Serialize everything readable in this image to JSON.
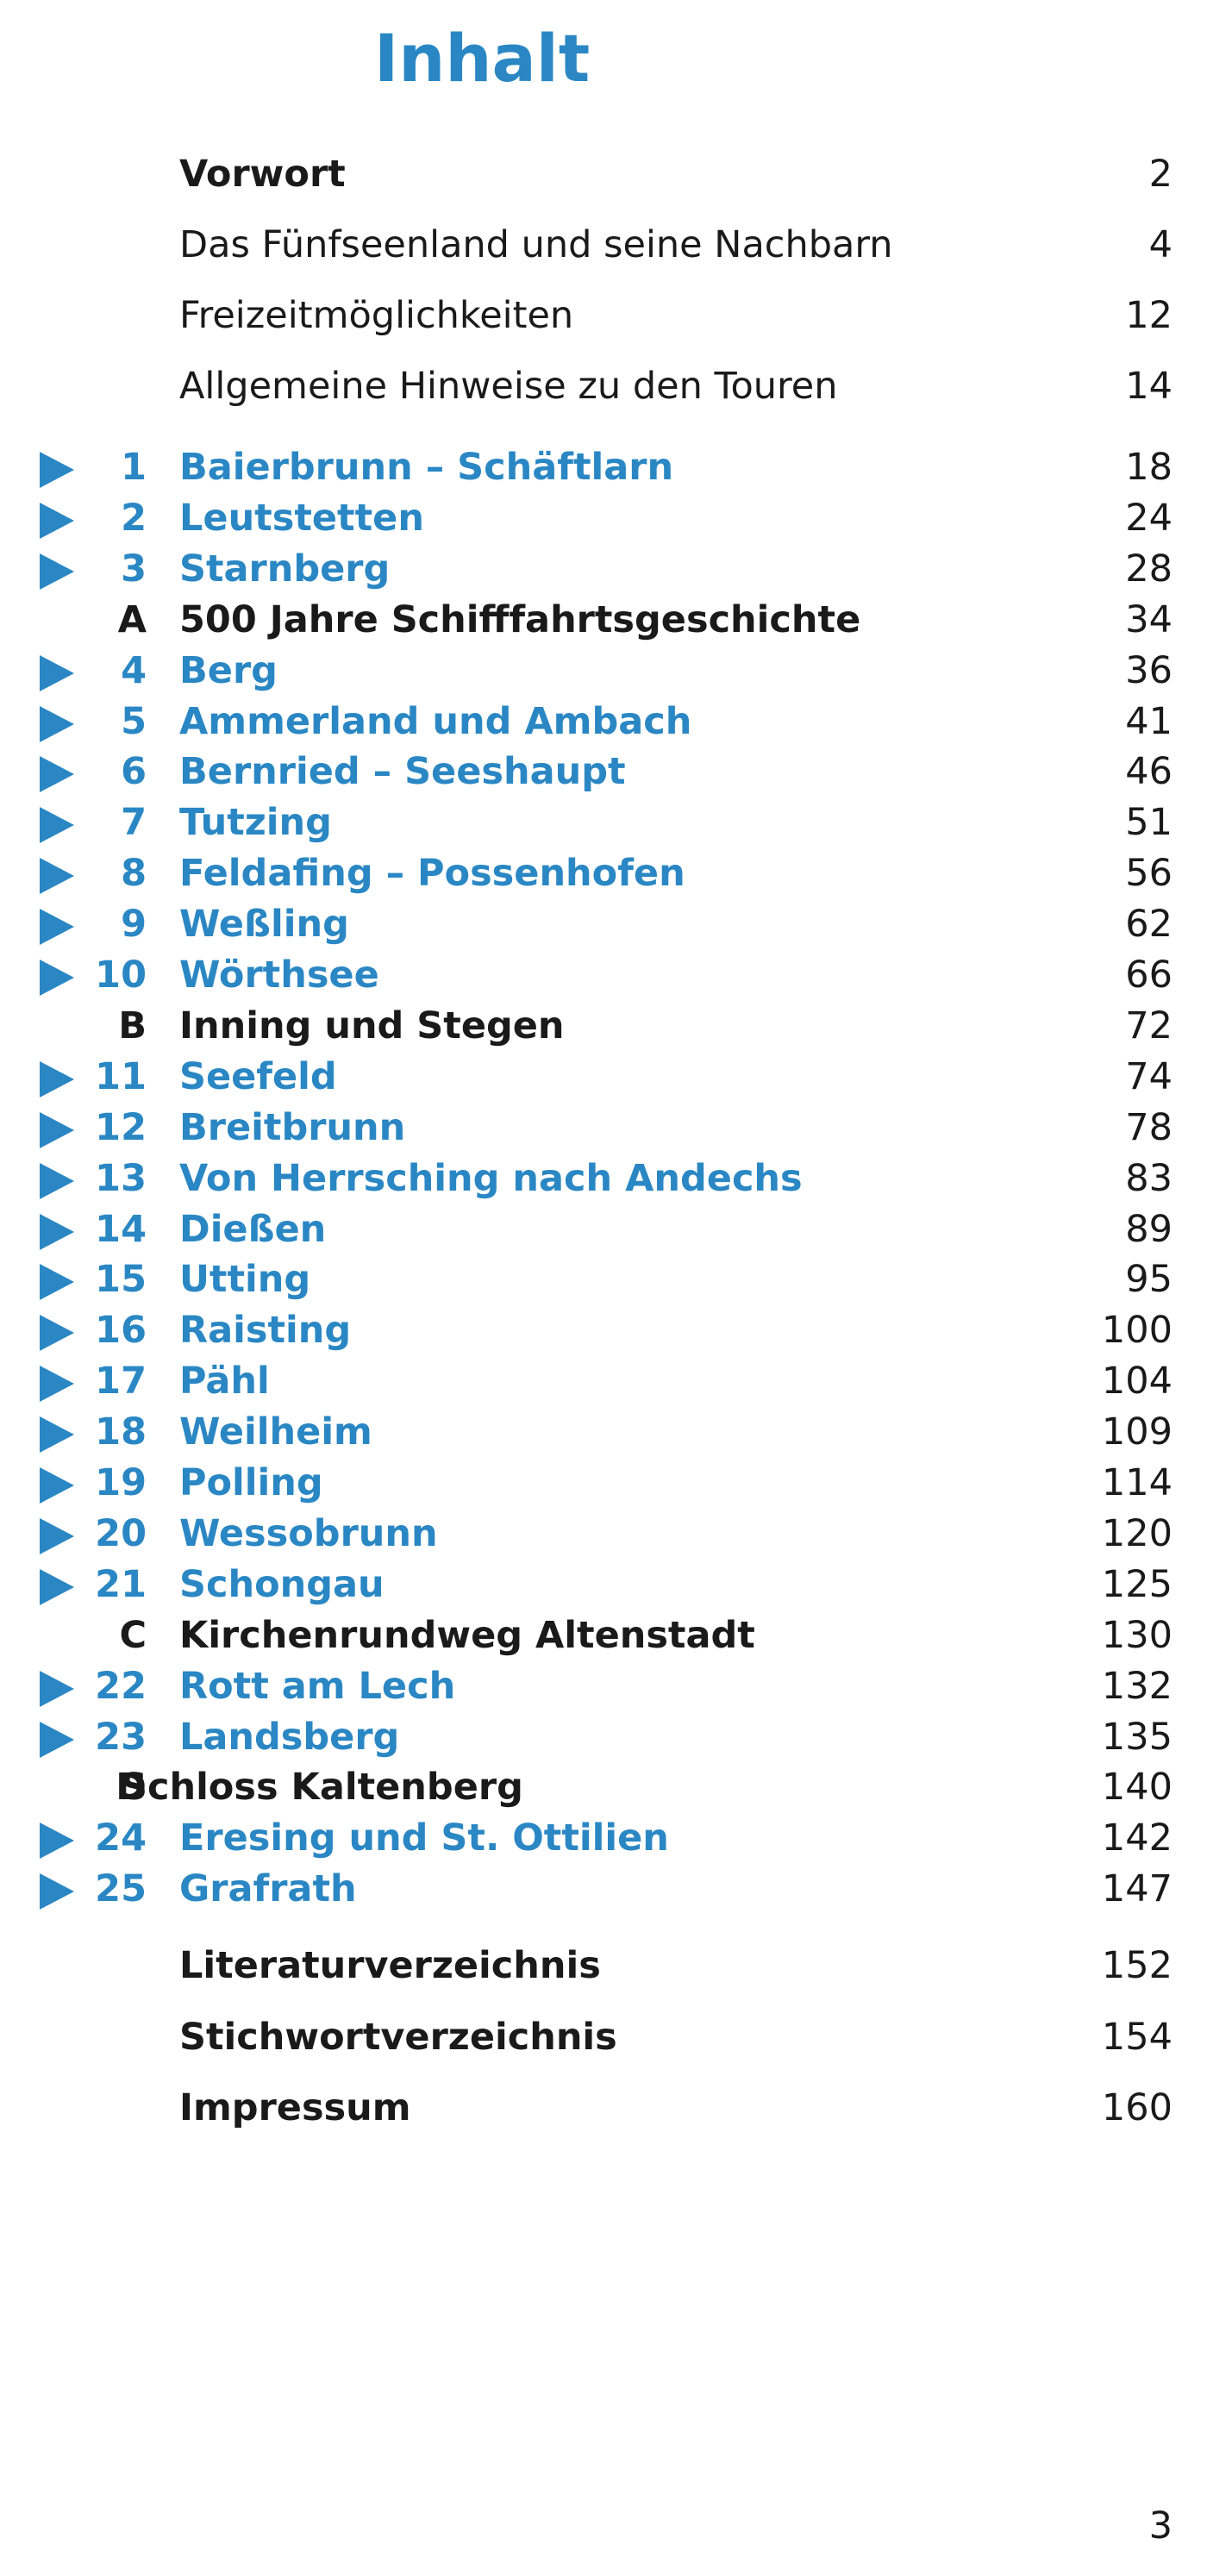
{
  "title": "Inhalt",
  "accent_color": "#2a87c4",
  "front_matter": [
    {
      "label": "Vorwort",
      "page": "2",
      "bold": true
    },
    {
      "label": "Das Fünfseenland und seine Nachbarn",
      "page": "4",
      "bold": false
    },
    {
      "label": "Freizeitmöglichkeiten",
      "page": "12",
      "bold": false
    },
    {
      "label": "Allgemeine Hinweise zu den Touren",
      "page": "14",
      "bold": false
    }
  ],
  "entries": [
    {
      "kind": "tour",
      "num": "1",
      "label": "Baierbrunn – Schäftlarn",
      "page": "18"
    },
    {
      "kind": "tour",
      "num": "2",
      "label": "Leutstetten",
      "page": "24"
    },
    {
      "kind": "tour",
      "num": "3",
      "label": "Starnberg",
      "page": "28"
    },
    {
      "kind": "extra",
      "num": "A",
      "label": "500 Jahre Schifffahrtsgeschichte",
      "page": "34"
    },
    {
      "kind": "tour",
      "num": "4",
      "label": "Berg",
      "page": "36"
    },
    {
      "kind": "tour",
      "num": "5",
      "label": "Ammerland und Ambach",
      "page": "41"
    },
    {
      "kind": "tour",
      "num": "6",
      "label": "Bernried – Seeshaupt",
      "page": "46"
    },
    {
      "kind": "tour",
      "num": "7",
      "label": "Tutzing",
      "page": "51"
    },
    {
      "kind": "tour",
      "num": "8",
      "label": "Feldafing – Possenhofen",
      "page": "56"
    },
    {
      "kind": "tour",
      "num": "9",
      "label": "Weßling",
      "page": "62"
    },
    {
      "kind": "tour",
      "num": "10",
      "label": "Wörthsee",
      "page": "66"
    },
    {
      "kind": "extra",
      "num": "B",
      "label": "Inning und Stegen",
      "page": "72"
    },
    {
      "kind": "tour",
      "num": "11",
      "label": "Seefeld",
      "page": "74"
    },
    {
      "kind": "tour",
      "num": "12",
      "label": "Breitbrunn",
      "page": "78"
    },
    {
      "kind": "tour",
      "num": "13",
      "label": "Von Herrsching nach Andechs",
      "page": "83"
    },
    {
      "kind": "tour",
      "num": "14",
      "label": "Dießen",
      "page": "89"
    },
    {
      "kind": "tour",
      "num": "15",
      "label": "Utting",
      "page": "95"
    },
    {
      "kind": "tour",
      "num": "16",
      "label": "Raisting",
      "page": "100"
    },
    {
      "kind": "tour",
      "num": "17",
      "label": "Pähl",
      "page": "104"
    },
    {
      "kind": "tour",
      "num": "18",
      "label": "Weilheim",
      "page": "109"
    },
    {
      "kind": "tour",
      "num": "19",
      "label": "Polling",
      "page": "114"
    },
    {
      "kind": "tour",
      "num": "20",
      "label": "Wessobrunn",
      "page": "120"
    },
    {
      "kind": "tour",
      "num": "21",
      "label": "Schongau",
      "page": "125"
    },
    {
      "kind": "extra",
      "num": "C",
      "label": "Kirchenrundweg Altenstadt",
      "page": "130"
    },
    {
      "kind": "tour",
      "num": "22",
      "label": "Rott am Lech",
      "page": "132"
    },
    {
      "kind": "tour",
      "num": "23",
      "label": "Landsberg",
      "page": "135"
    },
    {
      "kind": "extra-d",
      "num": "D",
      "label": "Schloss Kaltenberg",
      "page": "140"
    },
    {
      "kind": "tour",
      "num": "24",
      "label": "Eresing und St. Ottilien",
      "page": "142"
    },
    {
      "kind": "tour",
      "num": "25",
      "label": "Grafrath",
      "page": "147"
    }
  ],
  "back_matter": [
    {
      "label": "Literaturverzeichnis",
      "page": "152"
    },
    {
      "label": "Stichwortverzeichnis",
      "page": "154"
    },
    {
      "label": "Impressum",
      "page": "160"
    }
  ],
  "folio": "3"
}
